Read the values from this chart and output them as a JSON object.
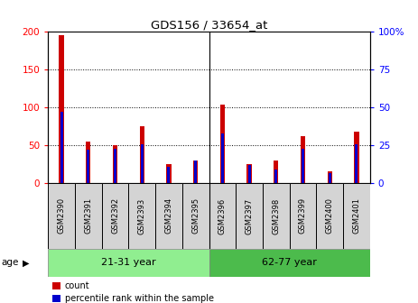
{
  "title": "GDS156 / 33654_at",
  "samples": [
    "GSM2390",
    "GSM2391",
    "GSM2392",
    "GSM2393",
    "GSM2394",
    "GSM2395",
    "GSM2396",
    "GSM2397",
    "GSM2398",
    "GSM2399",
    "GSM2400",
    "GSM2401"
  ],
  "counts": [
    196,
    55,
    50,
    75,
    25,
    30,
    104,
    25,
    30,
    62,
    16,
    68
  ],
  "percentiles": [
    47,
    22,
    23,
    26,
    11,
    15,
    33,
    12,
    9,
    23,
    7,
    26
  ],
  "groups": [
    {
      "label": "21-31 year",
      "start": 0,
      "end": 6
    },
    {
      "label": "62-77 year",
      "start": 6,
      "end": 12
    }
  ],
  "light_green": "#90EE90",
  "mid_green": "#4CBB4C",
  "ylim_left": [
    0,
    200
  ],
  "ylim_right": [
    0,
    100
  ],
  "yticks_left": [
    0,
    50,
    100,
    150,
    200
  ],
  "yticks_right": [
    0,
    25,
    50,
    75,
    100
  ],
  "ytick_labels_right": [
    "0",
    "25",
    "50",
    "75",
    "100%"
  ],
  "bar_color_red": "#CC0000",
  "bar_color_blue": "#0000CC",
  "cell_bg": "#d4d4d4",
  "plot_bg": "#ffffff",
  "age_label": "age",
  "legend_count": "count",
  "legend_percentile": "percentile rank within the sample"
}
